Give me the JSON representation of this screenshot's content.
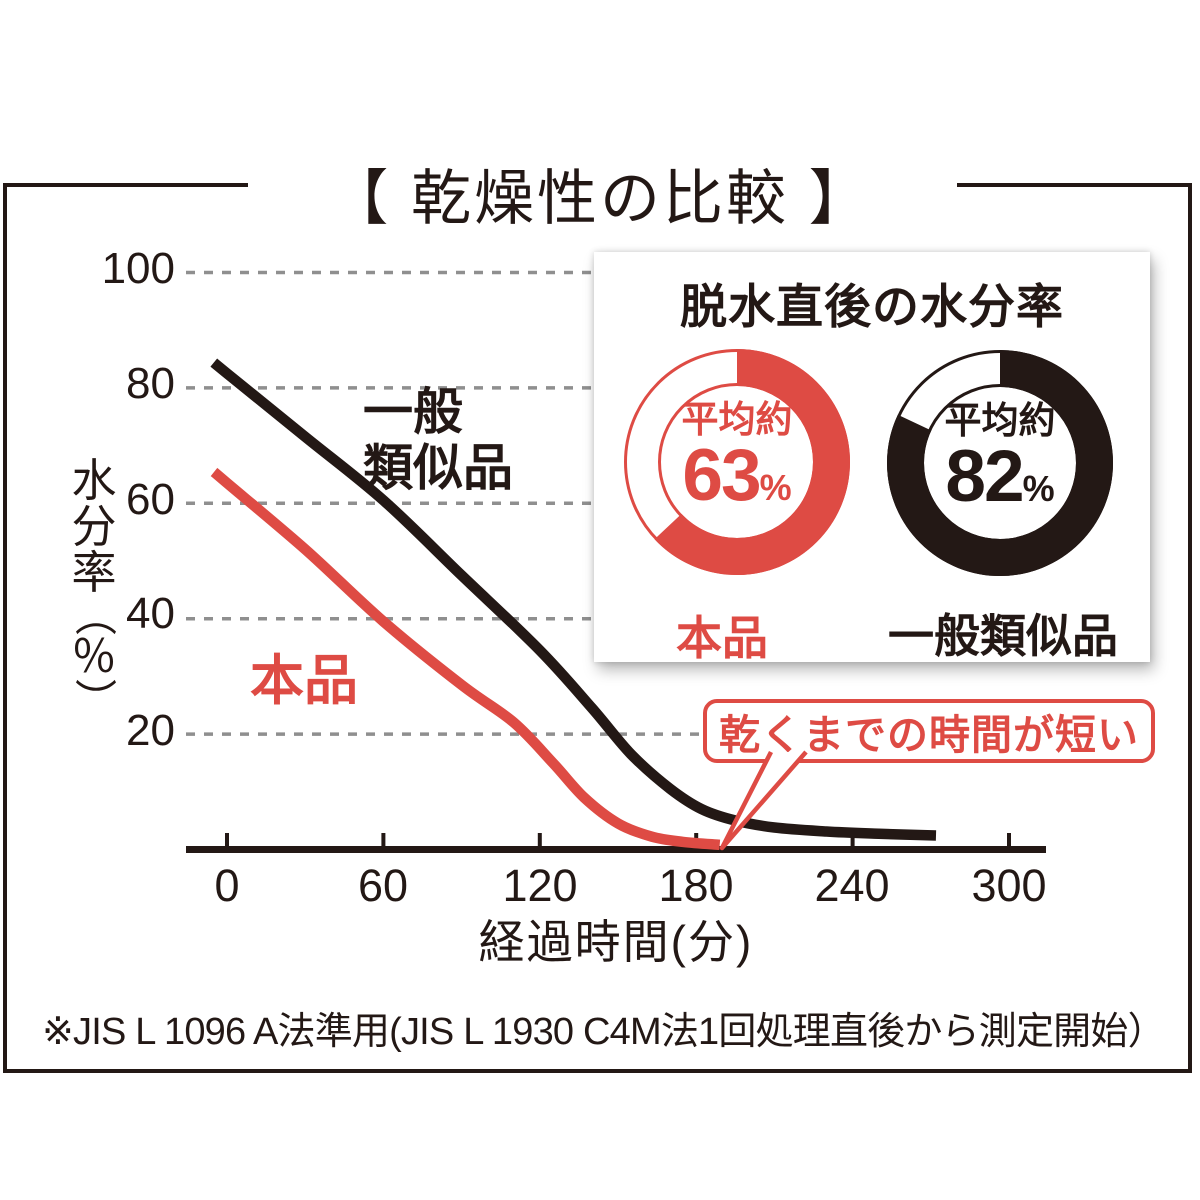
{
  "title": "【 乾燥性の比較 】",
  "colors": {
    "red": "#de4b44",
    "black": "#231815",
    "grid": "#8f8f8f"
  },
  "y_axis": {
    "label": "水分率（％）",
    "chars": [
      "水",
      "分",
      "率",
      "（",
      "％",
      "）"
    ]
  },
  "x_axis": {
    "title": "経過時間(分)"
  },
  "series_labels": {
    "generic_line1": "一般",
    "generic_line2": "類似品",
    "product": "本品"
  },
  "inset": {
    "title": "脱水直後の水分率",
    "donuts": [
      {
        "prefix": "平均約",
        "value": "63",
        "unit": "%",
        "label": "本品",
        "percent": 63,
        "color": "#de4b44"
      },
      {
        "prefix": "平均約",
        "value": "82",
        "unit": "%",
        "label": "一般類似品",
        "percent": 82,
        "color": "#231815"
      }
    ]
  },
  "callout": {
    "text": "乾くまでの時間が短い"
  },
  "footnote": "※JIS L 1096 A法準用(JIS L 1930 C4M法1回処理直後から測定開始）",
  "chart_data": {
    "type": "line",
    "title": "乾燥性の比較",
    "xlabel": "経過時間(分)",
    "ylabel": "水分率(%)",
    "xlim": [
      0,
      300
    ],
    "ylim": [
      0,
      100
    ],
    "x_ticks": [
      0,
      60,
      120,
      180,
      240,
      300
    ],
    "y_ticks": [
      100,
      80,
      60,
      40,
      20
    ],
    "grid": "horizontal-dashed",
    "legend_position": "on-chart-labels",
    "series": [
      {
        "name": "一般類似品",
        "color": "#231815",
        "points": [
          [
            0,
            82
          ],
          [
            30,
            71
          ],
          [
            60,
            60
          ],
          [
            90,
            47
          ],
          [
            120,
            34
          ],
          [
            140,
            24
          ],
          [
            155,
            16
          ],
          [
            170,
            10
          ],
          [
            182,
            6.5
          ],
          [
            195,
            4.5
          ],
          [
            210,
            3.3
          ],
          [
            230,
            2.6
          ],
          [
            250,
            2.2
          ],
          [
            272,
            1.9
          ]
        ]
      },
      {
        "name": "本品",
        "color": "#de4b44",
        "points": [
          [
            0,
            63
          ],
          [
            30,
            51.5
          ],
          [
            60,
            39
          ],
          [
            90,
            28
          ],
          [
            110,
            21.5
          ],
          [
            125,
            14.5
          ],
          [
            137,
            8.5
          ],
          [
            150,
            4
          ],
          [
            163,
            1.7
          ],
          [
            175,
            0.8
          ],
          [
            189,
            0.3
          ]
        ]
      }
    ],
    "annotation": {
      "text": "乾くまでの時間が短い",
      "arrow_target_x": 189,
      "arrow_target_y": 0
    },
    "inset_donuts": [
      {
        "label": "本品",
        "value_pct": 63
      },
      {
        "label": "一般類似品",
        "value_pct": 82
      }
    ]
  }
}
